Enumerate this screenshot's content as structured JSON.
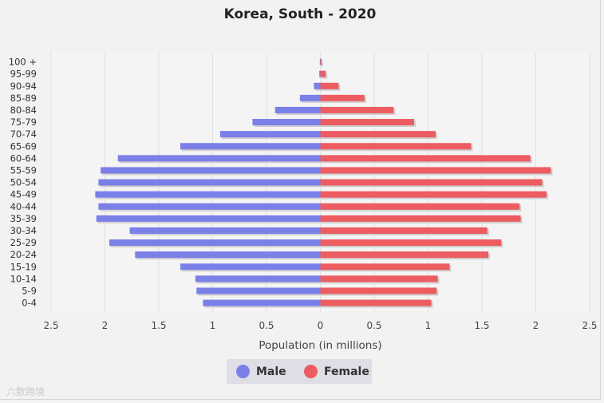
{
  "colors": {
    "male": "#7b7fe8",
    "female": "#ec5c60",
    "grid": "#e0e0e0"
  },
  "watermark": "六数跨境",
  "chart_data": {
    "type": "bar",
    "orientation": "horizontal-pyramid",
    "title": "Korea, South - 2020",
    "xlabel": "Population (in millions)",
    "ylabel": "",
    "xlim": [
      -2.5,
      2.5
    ],
    "xticks": [
      -2.5,
      -2,
      -1.5,
      -1,
      -0.5,
      0,
      0.5,
      1,
      1.5,
      2,
      2.5
    ],
    "xtick_labels": [
      "2.5",
      "2",
      "1.5",
      "1",
      "0.5",
      "0",
      "0.5",
      "1",
      "1.5",
      "2",
      "2.5"
    ],
    "grid": true,
    "legend_position": "bottom-center",
    "categories": [
      "100 +",
      "95-99",
      "90-94",
      "85-89",
      "80-84",
      "75-79",
      "70-74",
      "65-69",
      "60-64",
      "55-59",
      "50-54",
      "45-49",
      "40-44",
      "35-39",
      "30-34",
      "25-29",
      "20-24",
      "15-19",
      "10-14",
      "5-9",
      "0-4"
    ],
    "series": [
      {
        "name": "Male",
        "values": [
          0.005,
          0.01,
          0.06,
          0.19,
          0.42,
          0.63,
          0.93,
          1.3,
          1.88,
          2.04,
          2.06,
          2.09,
          2.06,
          2.08,
          1.77,
          1.96,
          1.72,
          1.3,
          1.16,
          1.15,
          1.09
        ]
      },
      {
        "name": "Female",
        "values": [
          0.01,
          0.05,
          0.17,
          0.41,
          0.68,
          0.87,
          1.07,
          1.4,
          1.95,
          2.14,
          2.06,
          2.1,
          1.85,
          1.86,
          1.55,
          1.68,
          1.56,
          1.2,
          1.09,
          1.08,
          1.03
        ]
      }
    ]
  }
}
